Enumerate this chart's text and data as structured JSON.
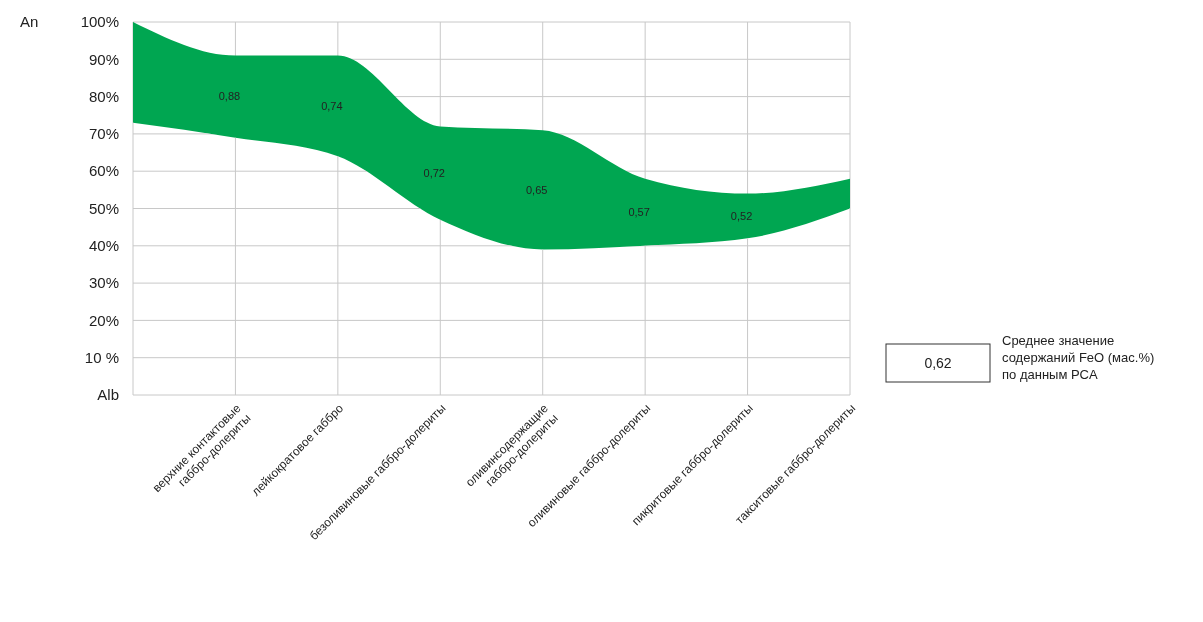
{
  "chart_data": {
    "type": "area",
    "ylabel": "An",
    "categories": [
      null,
      "верхние контактовые\nгаббро-долериты",
      "лейкократовое габбро",
      "безоливиновые габбро-долериты",
      "оливинсодержащие\nгаббро-долериты",
      "оливиновые габбро-долериты",
      "пикритовые габбро-долериты",
      "такситовые  габбро-долериты"
    ],
    "series": [
      {
        "color": "#00a651",
        "values": [
          100,
          91,
          91,
          72,
          71,
          58,
          54,
          58
        ]
      },
      {
        "color": "#ffffff",
        "values": [
          73,
          69,
          64,
          47,
          39,
          40,
          42,
          50
        ]
      }
    ],
    "ylim": [
      0,
      100
    ],
    "yticks": [
      {
        "value": 0,
        "label": "Alb"
      },
      {
        "value": 10,
        "label": "10 %"
      },
      {
        "value": 20,
        "label": "20%"
      },
      {
        "value": 30,
        "label": "30%"
      },
      {
        "value": 40,
        "label": "40%"
      },
      {
        "value": 50,
        "label": "50%"
      },
      {
        "value": 60,
        "label": "60%"
      },
      {
        "value": 70,
        "label": "70%"
      },
      {
        "value": 80,
        "label": "80%"
      },
      {
        "value": 90,
        "label": "90%"
      },
      {
        "value": 100,
        "label": "100%"
      }
    ],
    "grid": true,
    "annotations": [
      "0,88",
      "0,74",
      "0,72",
      "0,65",
      "0,57",
      "0,52",
      "0,62",
      "Среднее значение\nсодержаний FeO (мас.%)\nпо данным PCA"
    ]
  }
}
